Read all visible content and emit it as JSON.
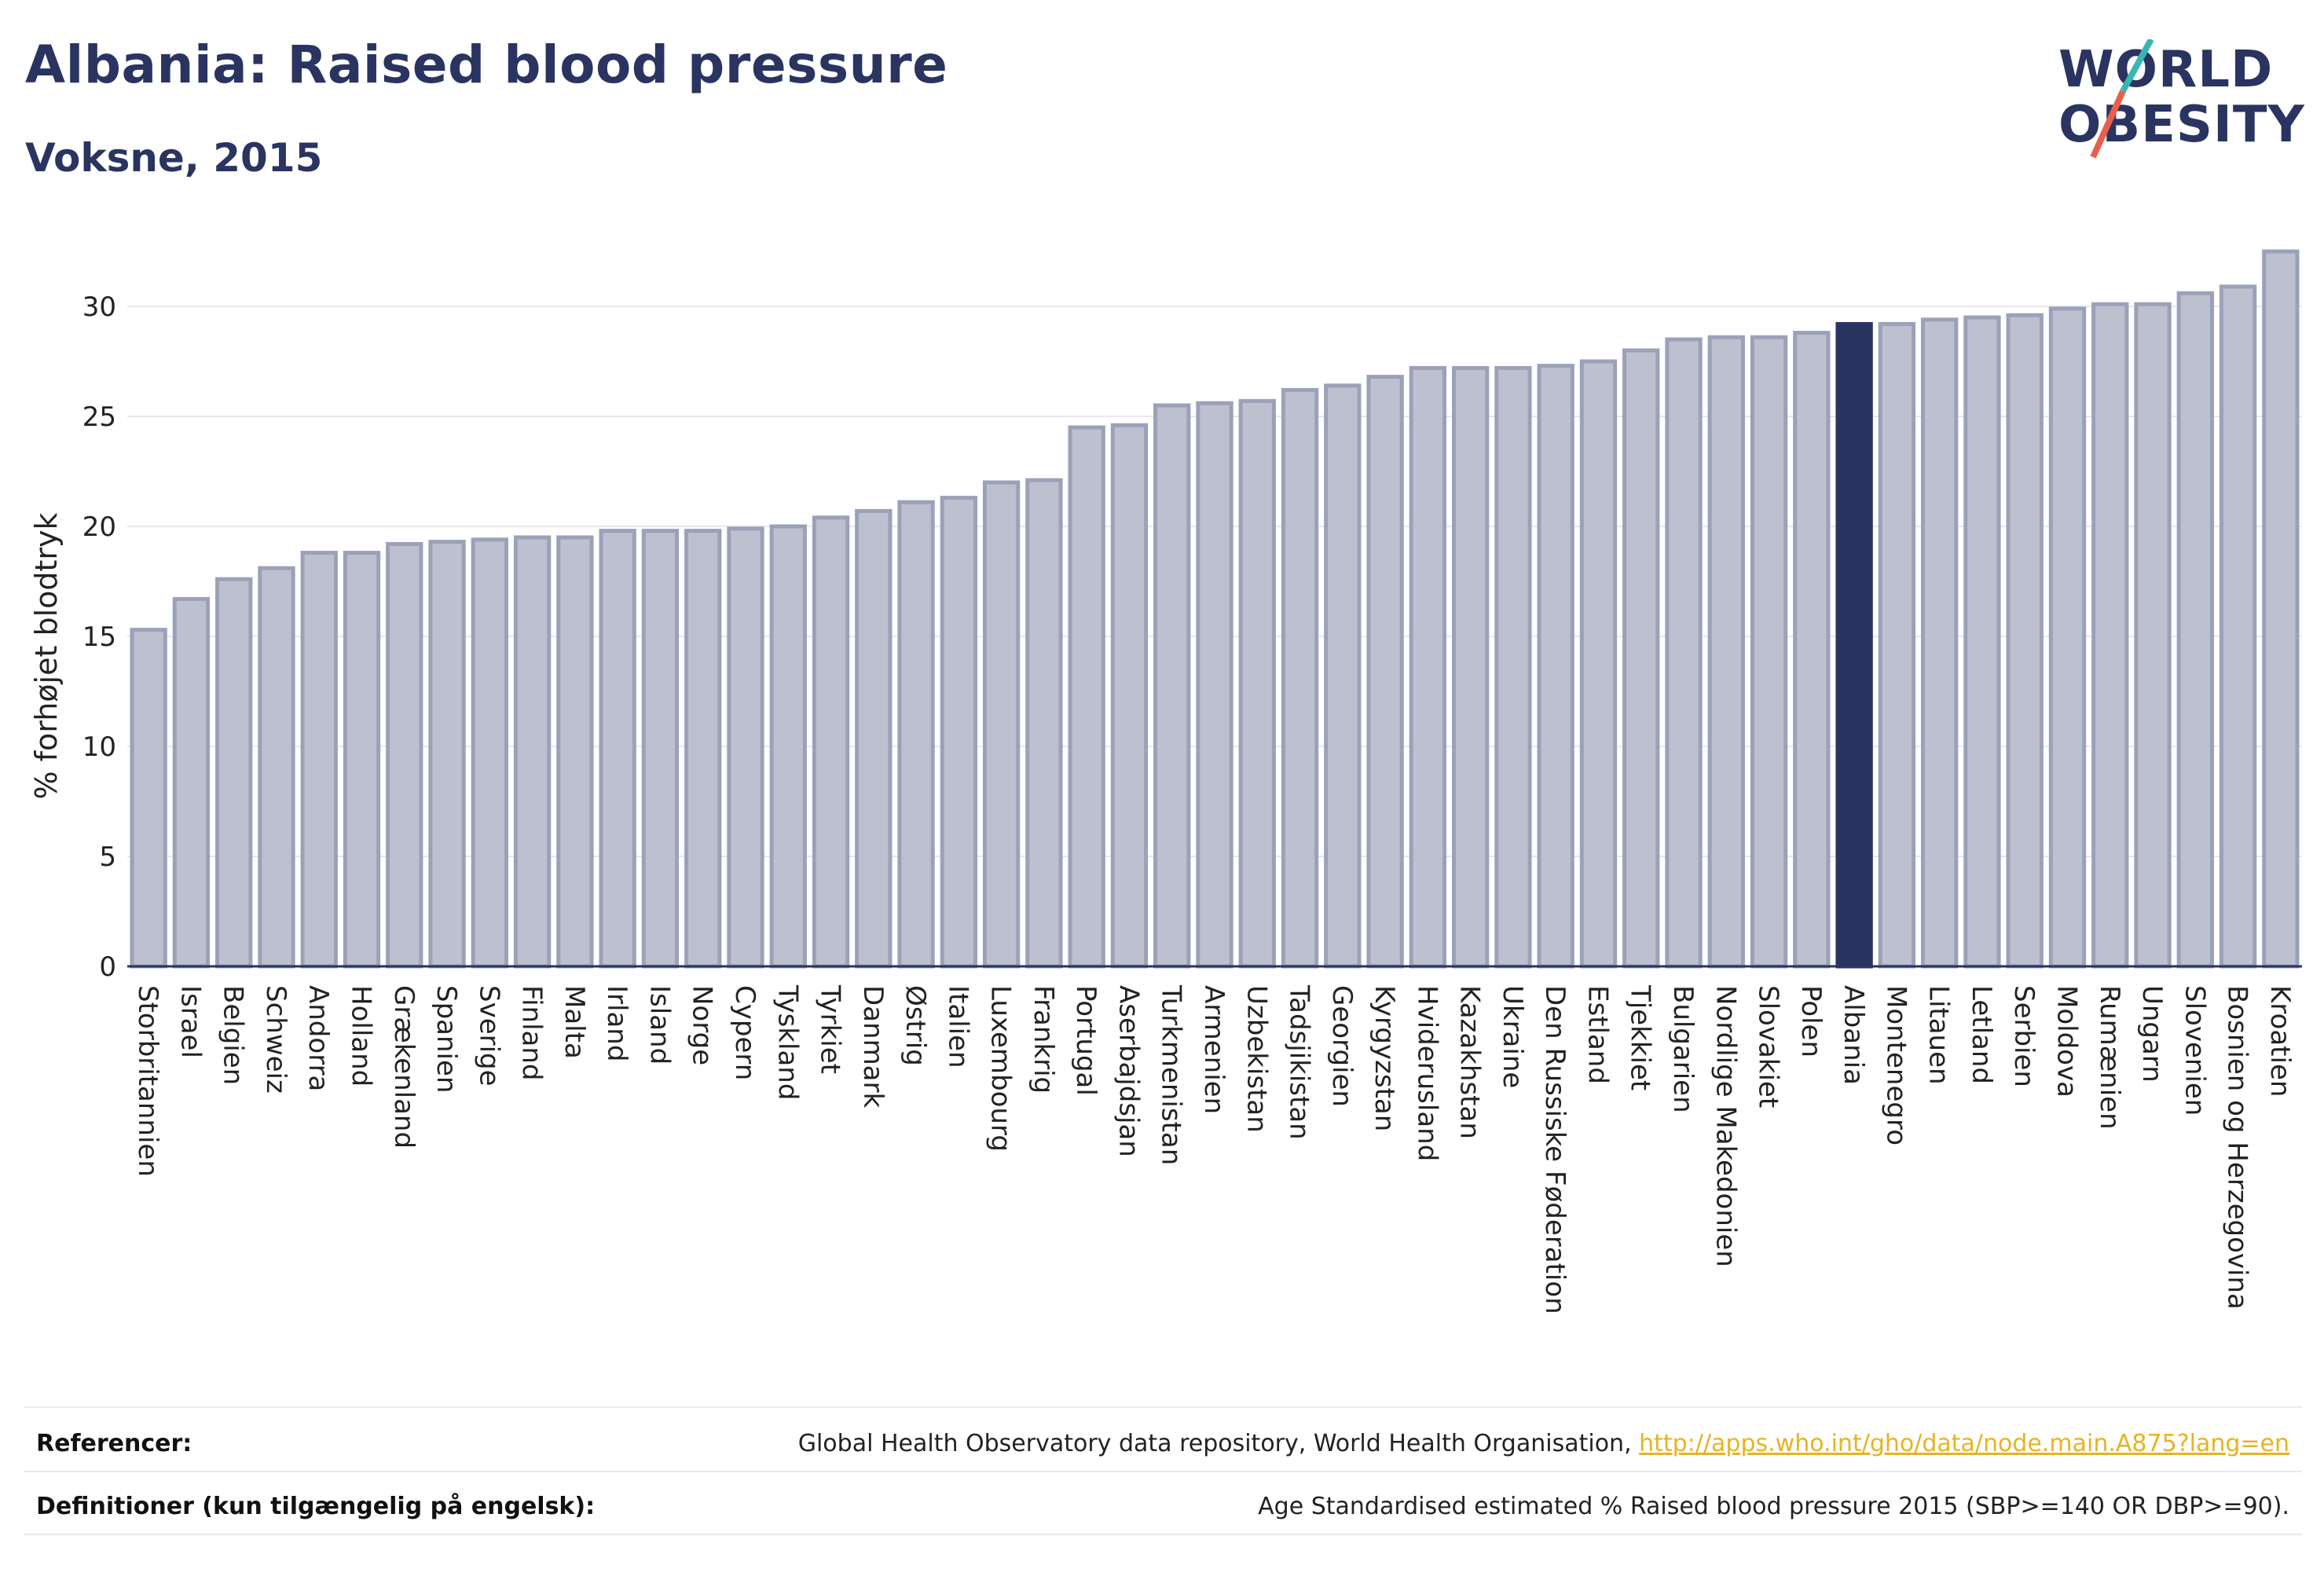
{
  "header": {
    "title": "Albania: Raised blood pressure",
    "subtitle": "Voksne, 2015"
  },
  "logo": {
    "line1": "WORLD",
    "line2": "OBESITY",
    "accent_colors": [
      "#36b7b4",
      "#e8604c"
    ]
  },
  "colors": {
    "bar": "#bcc0cf",
    "bar_edge": "#9ba1b9",
    "highlight": "#2a3461",
    "grid": "#e6e7ee",
    "axis": "#2a3461"
  },
  "chart_data": {
    "type": "bar",
    "title": "Albania: Raised blood pressure",
    "subtitle": "Voksne, 2015",
    "xlabel": "",
    "ylabel": "% forhøjet blodtryk",
    "ylim": [
      0,
      33
    ],
    "yticks": [
      0,
      5,
      10,
      15,
      20,
      25,
      30
    ],
    "grid": true,
    "highlight": "Albania",
    "categories": [
      "Storbritannien",
      "Israel",
      "Belgien",
      "Schweiz",
      "Andorra",
      "Holland",
      "Grækenland",
      "Spanien",
      "Sverige",
      "Finland",
      "Malta",
      "Irland",
      "Island",
      "Norge",
      "Cypern",
      "Tyskland",
      "Tyrkiet",
      "Danmark",
      "Østrig",
      "Italien",
      "Luxembourg",
      "Frankrig",
      "Portugal",
      "Aserbajdsjan",
      "Turkmenistan",
      "Armenien",
      "Uzbekistan",
      "Tadsjikistan",
      "Georgien",
      "Kyrgyzstan",
      "Hviderusland",
      "Kazakhstan",
      "Ukraine",
      "Den Russiske Føderation",
      "Estland",
      "Tjekkiet",
      "Bulgarien",
      "Nordlige Makedonien",
      "Slovakiet",
      "Polen",
      "Albania",
      "Montenegro",
      "Litauen",
      "Letland",
      "Serbien",
      "Moldova",
      "Rumænien",
      "Ungarn",
      "Slovenien",
      "Bosnien og Herzegovina",
      "Kroatien"
    ],
    "values": [
      15.3,
      16.7,
      17.6,
      18.1,
      18.8,
      18.8,
      19.2,
      19.3,
      19.4,
      19.5,
      19.5,
      19.8,
      19.8,
      19.8,
      19.9,
      20.0,
      20.4,
      20.7,
      21.1,
      21.3,
      22.0,
      22.1,
      24.5,
      24.6,
      25.5,
      25.6,
      25.7,
      26.2,
      26.4,
      26.8,
      27.2,
      27.2,
      27.2,
      27.3,
      27.5,
      28.0,
      28.5,
      28.6,
      28.6,
      28.8,
      29.2,
      29.2,
      29.4,
      29.5,
      29.6,
      29.9,
      30.1,
      30.1,
      30.6,
      30.9,
      32.5
    ]
  },
  "footer": {
    "references_label": "Referencer:",
    "references_text": "Global Health Observatory data repository, World Health Organisation, ",
    "references_link": "http://apps.who.int/gho/data/node.main.A875?lang=en",
    "definitions_label": "Definitioner (kun tilgængelig på engelsk):",
    "definitions_text": "Age Standardised estimated % Raised blood pressure 2015 (SBP>=140 OR DBP>=90)."
  }
}
